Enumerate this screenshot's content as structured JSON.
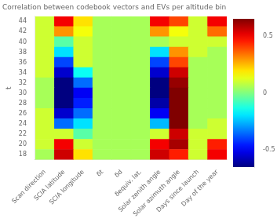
{
  "chart_data": {
    "type": "heatmap",
    "title": "Correlation between codebook vectors and EVs per altitude bin",
    "categories": [
      "Scan direction",
      "SCIA latitude",
      "SCIA longitude",
      "δt",
      "δd",
      "δequiv. lat.",
      "Solar zenith angle",
      "Solar azimuth angle",
      "Days since launch",
      "Day of the year"
    ],
    "y_label": "t",
    "ylim": [
      17,
      45
    ],
    "yticks": [
      18,
      20,
      22,
      24,
      26,
      28,
      30,
      32,
      34,
      36,
      38,
      40,
      42,
      44
    ],
    "values": [
      [
        0.05,
        0.55,
        0.2,
        0.05,
        0.05,
        0.05,
        0.55,
        0.45,
        0.1,
        0.5
      ],
      [
        0.1,
        0.5,
        0.1,
        0.05,
        0.05,
        0.05,
        0.5,
        0.6,
        0.1,
        0.45
      ],
      [
        0.1,
        0.1,
        -0.05,
        0.05,
        0.05,
        0.05,
        0.1,
        0.55,
        0.1,
        0.1
      ],
      [
        0.1,
        -0.35,
        -0.2,
        0.05,
        0.05,
        0.05,
        -0.25,
        0.65,
        0.05,
        0.1
      ],
      [
        0.1,
        -0.55,
        -0.35,
        0.05,
        0.05,
        0.05,
        -0.5,
        0.65,
        0.05,
        0.05
      ],
      [
        0.05,
        -0.65,
        -0.45,
        0.05,
        0.05,
        0.05,
        -0.6,
        0.65,
        0.05,
        0.05
      ],
      [
        0.05,
        -0.65,
        -0.5,
        0.05,
        0.05,
        0.05,
        -0.65,
        0.65,
        0.05,
        0.05
      ],
      [
        0.05,
        -0.65,
        -0.35,
        0.05,
        0.05,
        0.05,
        -0.65,
        0.62,
        0.05,
        0.05
      ],
      [
        0.1,
        -0.55,
        -0.15,
        0.05,
        0.05,
        0.05,
        -0.55,
        0.55,
        0.05,
        0.05
      ],
      [
        0.1,
        -0.4,
        0.1,
        0.05,
        0.05,
        0.05,
        -0.4,
        0.4,
        0.05,
        0.05
      ],
      [
        0.1,
        -0.2,
        0.1,
        0.05,
        0.05,
        0.05,
        -0.2,
        0.3,
        0.1,
        0.05
      ],
      [
        0.1,
        -0.05,
        0.1,
        0.05,
        0.05,
        0.05,
        0.05,
        0.1,
        0.1,
        0.1
      ],
      [
        0.1,
        0.3,
        0.15,
        0.05,
        0.05,
        0.05,
        0.3,
        0.15,
        0.1,
        0.35
      ],
      [
        0.1,
        0.5,
        0.2,
        0.05,
        0.05,
        0.05,
        0.5,
        0.4,
        0.1,
        0.5
      ]
    ],
    "color": "jet",
    "colorbar_range": [
      -0.65,
      0.65
    ],
    "colorbar_ticks": [
      -0.5,
      0,
      0.5
    ],
    "grid": false
  }
}
